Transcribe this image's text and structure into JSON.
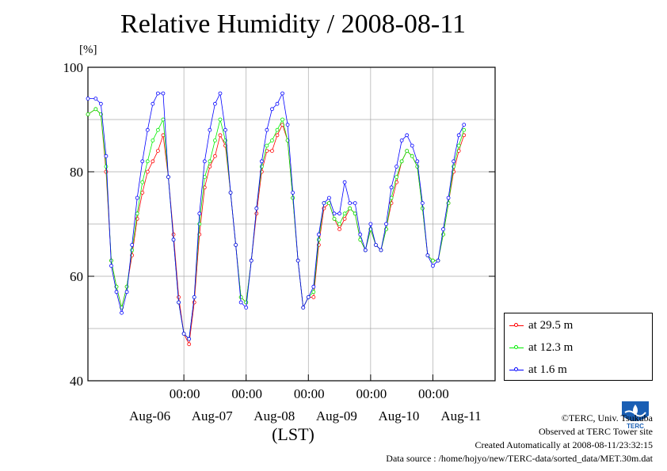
{
  "chart_data": {
    "type": "line",
    "title": "Relative Humidity / 2008-08-11",
    "ylabel": "[%]",
    "xlabel": "(LST)",
    "ylim": [
      40,
      100
    ],
    "yticks": [
      40,
      60,
      80,
      100
    ],
    "xlim": [
      "2008-08-05 11:00",
      "2008-08-11 24:00"
    ],
    "xticks": [
      {
        "x": "2008-08-07 00:00",
        "time": "00:00",
        "date": "Aug-06"
      },
      {
        "x": "2008-08-08 00:00",
        "time": "00:00",
        "date": "Aug-07"
      },
      {
        "x": "2008-08-09 00:00",
        "time": "00:00",
        "date": "Aug-08"
      },
      {
        "x": "2008-08-10 00:00",
        "time": "00:00",
        "date": "Aug-09"
      },
      {
        "x": "2008-08-11 00:00",
        "time": "00:00",
        "date": "Aug-10"
      },
      {
        "x": "2008-08-12 00:00",
        "time": "",
        "date": "Aug-11"
      }
    ],
    "grid": true,
    "legend_position": "bottom-right outside",
    "series": [
      {
        "name": "at 29.5 m",
        "color": "#ff0000",
        "points": [
          [
            "2008-08-05 11:00",
            91
          ],
          [
            "2008-08-05 14:00",
            92
          ],
          [
            "2008-08-05 16:00",
            91
          ],
          [
            "2008-08-05 18:00",
            80
          ],
          [
            "2008-08-05 20:00",
            63
          ],
          [
            "2008-08-05 22:00",
            58
          ],
          [
            "2008-08-06 00:00",
            54
          ],
          [
            "2008-08-06 02:00",
            58
          ],
          [
            "2008-08-06 04:00",
            64
          ],
          [
            "2008-08-06 06:00",
            71
          ],
          [
            "2008-08-06 08:00",
            76
          ],
          [
            "2008-08-06 10:00",
            80
          ],
          [
            "2008-08-06 12:00",
            82
          ],
          [
            "2008-08-06 14:00",
            84
          ],
          [
            "2008-08-06 16:00",
            87
          ],
          [
            "2008-08-06 18:00",
            79
          ],
          [
            "2008-08-06 20:00",
            68
          ],
          [
            "2008-08-06 22:00",
            56
          ],
          [
            "2008-08-07 00:00",
            49
          ],
          [
            "2008-08-07 02:00",
            47
          ],
          [
            "2008-08-07 04:00",
            55
          ],
          [
            "2008-08-07 06:00",
            68
          ],
          [
            "2008-08-07 08:00",
            77
          ],
          [
            "2008-08-07 10:00",
            81
          ],
          [
            "2008-08-07 12:00",
            83
          ],
          [
            "2008-08-07 14:00",
            87
          ],
          [
            "2008-08-07 16:00",
            85
          ],
          [
            "2008-08-07 18:00",
            76
          ],
          [
            "2008-08-07 20:00",
            66
          ],
          [
            "2008-08-07 22:00",
            56
          ],
          [
            "2008-08-08 00:00",
            55
          ],
          [
            "2008-08-08 02:00",
            63
          ],
          [
            "2008-08-08 04:00",
            72
          ],
          [
            "2008-08-08 06:00",
            80
          ],
          [
            "2008-08-08 08:00",
            84
          ],
          [
            "2008-08-08 10:00",
            84
          ],
          [
            "2008-08-08 12:00",
            87
          ],
          [
            "2008-08-08 14:00",
            89
          ],
          [
            "2008-08-08 16:00",
            86
          ],
          [
            "2008-08-08 18:00",
            75
          ],
          [
            "2008-08-08 20:00",
            63
          ],
          [
            "2008-08-08 22:00",
            54
          ],
          [
            "2008-08-09 00:00",
            56
          ],
          [
            "2008-08-09 02:00",
            56
          ],
          [
            "2008-08-09 04:00",
            66
          ],
          [
            "2008-08-09 06:00",
            73
          ],
          [
            "2008-08-09 08:00",
            74
          ],
          [
            "2008-08-09 10:00",
            71
          ],
          [
            "2008-08-09 12:00",
            69
          ],
          [
            "2008-08-09 14:00",
            71
          ],
          [
            "2008-08-09 16:00",
            73
          ],
          [
            "2008-08-09 18:00",
            72
          ],
          [
            "2008-08-09 20:00",
            67
          ],
          [
            "2008-08-09 22:00",
            65
          ],
          [
            "2008-08-10 00:00",
            69
          ],
          [
            "2008-08-10 02:00",
            66
          ],
          [
            "2008-08-10 04:00",
            65
          ],
          [
            "2008-08-10 06:00",
            69
          ],
          [
            "2008-08-10 08:00",
            74
          ],
          [
            "2008-08-10 10:00",
            78
          ],
          [
            "2008-08-10 12:00",
            82
          ],
          [
            "2008-08-10 14:00",
            84
          ],
          [
            "2008-08-10 16:00",
            83
          ],
          [
            "2008-08-10 18:00",
            81
          ],
          [
            "2008-08-10 20:00",
            73
          ],
          [
            "2008-08-10 22:00",
            64
          ],
          [
            "2008-08-11 00:00",
            63
          ],
          [
            "2008-08-11 02:00",
            63
          ],
          [
            "2008-08-11 04:00",
            68
          ],
          [
            "2008-08-11 06:00",
            74
          ],
          [
            "2008-08-11 08:00",
            80
          ],
          [
            "2008-08-11 10:00",
            84
          ],
          [
            "2008-08-11 12:00",
            87
          ]
        ]
      },
      {
        "name": "at 12.3 m",
        "color": "#00ee00",
        "points": [
          [
            "2008-08-05 11:00",
            91
          ],
          [
            "2008-08-05 14:00",
            92
          ],
          [
            "2008-08-05 16:00",
            91
          ],
          [
            "2008-08-05 18:00",
            81
          ],
          [
            "2008-08-05 20:00",
            63
          ],
          [
            "2008-08-05 22:00",
            58
          ],
          [
            "2008-08-06 00:00",
            54
          ],
          [
            "2008-08-06 02:00",
            58
          ],
          [
            "2008-08-06 04:00",
            65
          ],
          [
            "2008-08-06 06:00",
            72
          ],
          [
            "2008-08-06 08:00",
            78
          ],
          [
            "2008-08-06 10:00",
            82
          ],
          [
            "2008-08-06 12:00",
            86
          ],
          [
            "2008-08-06 14:00",
            88
          ],
          [
            "2008-08-06 16:00",
            90
          ],
          [
            "2008-08-06 18:00",
            79
          ],
          [
            "2008-08-06 20:00",
            67
          ],
          [
            "2008-08-06 22:00",
            55
          ],
          [
            "2008-08-07 00:00",
            49
          ],
          [
            "2008-08-07 02:00",
            48
          ],
          [
            "2008-08-07 04:00",
            56
          ],
          [
            "2008-08-07 06:00",
            70
          ],
          [
            "2008-08-07 08:00",
            79
          ],
          [
            "2008-08-07 10:00",
            82
          ],
          [
            "2008-08-07 12:00",
            86
          ],
          [
            "2008-08-07 14:00",
            90
          ],
          [
            "2008-08-07 16:00",
            86
          ],
          [
            "2008-08-07 18:00",
            76
          ],
          [
            "2008-08-07 20:00",
            66
          ],
          [
            "2008-08-07 22:00",
            56
          ],
          [
            "2008-08-08 00:00",
            55
          ],
          [
            "2008-08-08 02:00",
            63
          ],
          [
            "2008-08-08 04:00",
            73
          ],
          [
            "2008-08-08 06:00",
            81
          ],
          [
            "2008-08-08 08:00",
            85
          ],
          [
            "2008-08-08 10:00",
            86
          ],
          [
            "2008-08-08 12:00",
            88
          ],
          [
            "2008-08-08 14:00",
            90
          ],
          [
            "2008-08-08 16:00",
            86
          ],
          [
            "2008-08-08 18:00",
            75
          ],
          [
            "2008-08-08 20:00",
            63
          ],
          [
            "2008-08-08 22:00",
            54
          ],
          [
            "2008-08-09 00:00",
            56
          ],
          [
            "2008-08-09 02:00",
            57
          ],
          [
            "2008-08-09 04:00",
            67
          ],
          [
            "2008-08-09 06:00",
            74
          ],
          [
            "2008-08-09 08:00",
            74
          ],
          [
            "2008-08-09 10:00",
            71
          ],
          [
            "2008-08-09 12:00",
            70
          ],
          [
            "2008-08-09 14:00",
            72
          ],
          [
            "2008-08-09 16:00",
            73
          ],
          [
            "2008-08-09 18:00",
            72
          ],
          [
            "2008-08-09 20:00",
            67
          ],
          [
            "2008-08-09 22:00",
            65
          ],
          [
            "2008-08-10 00:00",
            69
          ],
          [
            "2008-08-10 02:00",
            66
          ],
          [
            "2008-08-10 04:00",
            65
          ],
          [
            "2008-08-10 06:00",
            69
          ],
          [
            "2008-08-10 08:00",
            75
          ],
          [
            "2008-08-10 10:00",
            79
          ],
          [
            "2008-08-10 12:00",
            82
          ],
          [
            "2008-08-10 14:00",
            84
          ],
          [
            "2008-08-10 16:00",
            83
          ],
          [
            "2008-08-10 18:00",
            81
          ],
          [
            "2008-08-10 20:00",
            73
          ],
          [
            "2008-08-10 22:00",
            64
          ],
          [
            "2008-08-11 00:00",
            63
          ],
          [
            "2008-08-11 02:00",
            63
          ],
          [
            "2008-08-11 04:00",
            68
          ],
          [
            "2008-08-11 06:00",
            74
          ],
          [
            "2008-08-11 08:00",
            81
          ],
          [
            "2008-08-11 10:00",
            85
          ],
          [
            "2008-08-11 12:00",
            88
          ]
        ]
      },
      {
        "name": "at 1.6 m",
        "color": "#0000ff",
        "points": [
          [
            "2008-08-05 11:00",
            94
          ],
          [
            "2008-08-05 14:00",
            94
          ],
          [
            "2008-08-05 16:00",
            93
          ],
          [
            "2008-08-05 18:00",
            83
          ],
          [
            "2008-08-05 20:00",
            62
          ],
          [
            "2008-08-05 22:00",
            57
          ],
          [
            "2008-08-06 00:00",
            53
          ],
          [
            "2008-08-06 02:00",
            57
          ],
          [
            "2008-08-06 04:00",
            66
          ],
          [
            "2008-08-06 06:00",
            75
          ],
          [
            "2008-08-06 08:00",
            82
          ],
          [
            "2008-08-06 10:00",
            88
          ],
          [
            "2008-08-06 12:00",
            93
          ],
          [
            "2008-08-06 14:00",
            95
          ],
          [
            "2008-08-06 16:00",
            95
          ],
          [
            "2008-08-06 18:00",
            79
          ],
          [
            "2008-08-06 20:00",
            67
          ],
          [
            "2008-08-06 22:00",
            55
          ],
          [
            "2008-08-07 00:00",
            49
          ],
          [
            "2008-08-07 02:00",
            48
          ],
          [
            "2008-08-07 04:00",
            56
          ],
          [
            "2008-08-07 06:00",
            72
          ],
          [
            "2008-08-07 08:00",
            82
          ],
          [
            "2008-08-07 10:00",
            88
          ],
          [
            "2008-08-07 12:00",
            93
          ],
          [
            "2008-08-07 14:00",
            95
          ],
          [
            "2008-08-07 16:00",
            88
          ],
          [
            "2008-08-07 18:00",
            76
          ],
          [
            "2008-08-07 20:00",
            66
          ],
          [
            "2008-08-07 22:00",
            55
          ],
          [
            "2008-08-08 00:00",
            54
          ],
          [
            "2008-08-08 02:00",
            63
          ],
          [
            "2008-08-08 04:00",
            73
          ],
          [
            "2008-08-08 06:00",
            82
          ],
          [
            "2008-08-08 08:00",
            88
          ],
          [
            "2008-08-08 10:00",
            92
          ],
          [
            "2008-08-08 12:00",
            93
          ],
          [
            "2008-08-08 14:00",
            95
          ],
          [
            "2008-08-08 16:00",
            89
          ],
          [
            "2008-08-08 18:00",
            76
          ],
          [
            "2008-08-08 20:00",
            63
          ],
          [
            "2008-08-08 22:00",
            54
          ],
          [
            "2008-08-09 00:00",
            56
          ],
          [
            "2008-08-09 02:00",
            58
          ],
          [
            "2008-08-09 04:00",
            68
          ],
          [
            "2008-08-09 06:00",
            74
          ],
          [
            "2008-08-09 08:00",
            75
          ],
          [
            "2008-08-09 10:00",
            72
          ],
          [
            "2008-08-09 12:00",
            72
          ],
          [
            "2008-08-09 14:00",
            78
          ],
          [
            "2008-08-09 16:00",
            74
          ],
          [
            "2008-08-09 18:00",
            74
          ],
          [
            "2008-08-09 20:00",
            68
          ],
          [
            "2008-08-09 22:00",
            65
          ],
          [
            "2008-08-10 00:00",
            70
          ],
          [
            "2008-08-10 02:00",
            66
          ],
          [
            "2008-08-10 04:00",
            65
          ],
          [
            "2008-08-10 06:00",
            70
          ],
          [
            "2008-08-10 08:00",
            77
          ],
          [
            "2008-08-10 10:00",
            81
          ],
          [
            "2008-08-10 12:00",
            86
          ],
          [
            "2008-08-10 14:00",
            87
          ],
          [
            "2008-08-10 16:00",
            85
          ],
          [
            "2008-08-10 18:00",
            82
          ],
          [
            "2008-08-10 20:00",
            74
          ],
          [
            "2008-08-10 22:00",
            64
          ],
          [
            "2008-08-11 00:00",
            62
          ],
          [
            "2008-08-11 02:00",
            63
          ],
          [
            "2008-08-11 04:00",
            69
          ],
          [
            "2008-08-11 06:00",
            75
          ],
          [
            "2008-08-11 08:00",
            82
          ],
          [
            "2008-08-11 10:00",
            87
          ],
          [
            "2008-08-11 12:00",
            89
          ]
        ]
      }
    ]
  },
  "credits": {
    "copyright": "©TERC, Univ. Tsukuba",
    "observed": "Observed at TERC Tower site",
    "created": "Created Automatically at 2008-08-11/23:32:15",
    "source": "Data source : /home/hojyo/new/TERC-data/sorted_data/MET.30m.dat"
  },
  "logo": {
    "text": "TERC",
    "color": "#1a5fb4"
  }
}
